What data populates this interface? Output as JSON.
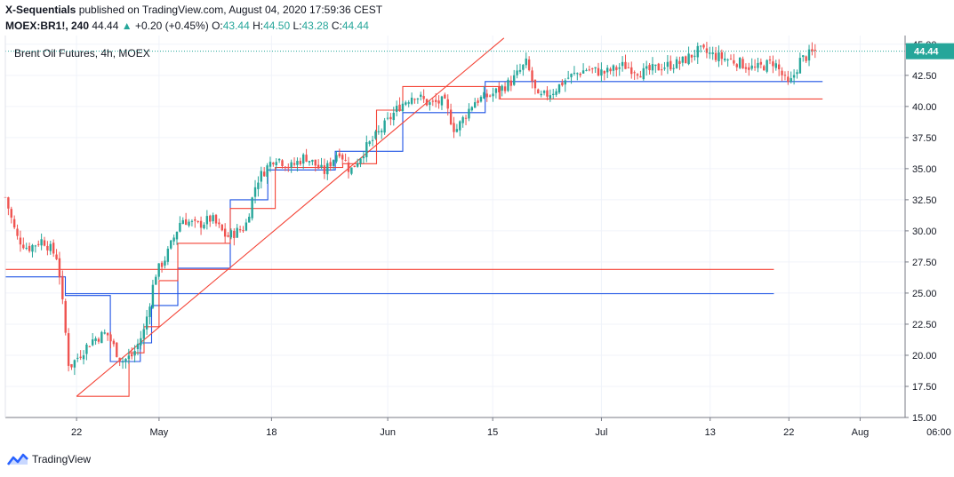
{
  "header": {
    "author": "X-Sequentials",
    "published": " published on TradingView.com, August 04, 2020 17:59:36 CEST",
    "symbol": "MOEX:BR1!, 240",
    "last": "44.44",
    "change_arrow": "▲",
    "change": "+0.20 (+0.45%)",
    "o_label": "O:",
    "o_value": "43.44",
    "h_label": "H:",
    "h_value": "44.50",
    "l_label": "L:",
    "l_value": "43.28",
    "c_label": "C:",
    "c_value": "44.44"
  },
  "footer": {
    "brand": "TradingView"
  },
  "colors": {
    "up": "#26a69a",
    "down": "#ef5350",
    "red_line": "#f44336",
    "blue_line": "#1e53e5",
    "grid": "#f0f3fa",
    "axis": "#787b86"
  },
  "chart_data": {
    "type": "candlestick",
    "title": "Brent Oil Futures, 4h, MOEX",
    "y_ticks": [
      "15.00",
      "17.50",
      "20.00",
      "22.50",
      "25.00",
      "27.50",
      "30.00",
      "32.50",
      "35.00",
      "37.50",
      "40.00",
      "42.50",
      "45.00"
    ],
    "ylim": [
      15,
      45.7
    ],
    "x_ticks": [
      "22",
      "May",
      "18",
      "Jun",
      "15",
      "Jul",
      "13",
      "22",
      "Aug",
      "06:00"
    ],
    "last_price_label": "44.44",
    "last_price": 44.44,
    "grid": true,
    "close_path": [
      [
        0,
        32.7
      ],
      [
        0.3,
        29.5
      ],
      [
        0.6,
        28.6
      ],
      [
        1.0,
        29.3
      ],
      [
        1.4,
        27.8
      ],
      [
        1.7,
        19.0
      ],
      [
        2.3,
        21.2
      ],
      [
        2.7,
        21.8
      ],
      [
        3.1,
        19.5
      ],
      [
        3.4,
        20.0
      ],
      [
        3.7,
        22.0
      ],
      [
        4.0,
        26.5
      ],
      [
        4.3,
        28.0
      ],
      [
        4.7,
        31.0
      ],
      [
        5.1,
        30.4
      ],
      [
        5.5,
        31.0
      ],
      [
        5.9,
        29.5
      ],
      [
        6.4,
        30.3
      ],
      [
        6.7,
        34.0
      ],
      [
        7.2,
        36.0
      ],
      [
        7.6,
        35.1
      ],
      [
        8.0,
        36.0
      ],
      [
        8.5,
        34.7
      ],
      [
        8.9,
        36.5
      ],
      [
        9.2,
        34.8
      ],
      [
        9.6,
        36.6
      ],
      [
        10.0,
        38.0
      ],
      [
        10.5,
        40.0
      ],
      [
        10.9,
        41.0
      ],
      [
        11.3,
        40.2
      ],
      [
        11.7,
        40.4
      ],
      [
        12.0,
        38.0
      ],
      [
        12.5,
        40.4
      ],
      [
        13.0,
        41.0
      ],
      [
        13.5,
        42.0
      ],
      [
        13.9,
        43.5
      ],
      [
        14.2,
        40.6
      ],
      [
        14.6,
        41.2
      ],
      [
        15.0,
        42.3
      ],
      [
        15.5,
        43.0
      ],
      [
        16.0,
        42.7
      ],
      [
        16.5,
        43.3
      ],
      [
        17.0,
        42.7
      ],
      [
        17.5,
        43.2
      ],
      [
        18.0,
        43.5
      ],
      [
        18.5,
        44.5
      ],
      [
        19.0,
        44.0
      ],
      [
        19.5,
        43.6
      ],
      [
        20.0,
        43.0
      ],
      [
        20.5,
        43.6
      ],
      [
        20.9,
        41.6
      ],
      [
        21.2,
        43.7
      ],
      [
        21.6,
        44.44
      ]
    ],
    "red_steps": [
      [
        1.9,
        16.7
      ],
      [
        3.3,
        16.7
      ],
      [
        3.3,
        20.2
      ],
      [
        3.7,
        20.2
      ],
      [
        3.7,
        22.3
      ],
      [
        4.1,
        22.3
      ],
      [
        4.1,
        26.0
      ],
      [
        4.6,
        26.0
      ],
      [
        4.6,
        29.0
      ],
      [
        6.0,
        29.0
      ],
      [
        6.0,
        31.8
      ],
      [
        7.2,
        31.8
      ],
      [
        7.2,
        35.1
      ],
      [
        9.0,
        35.1
      ],
      [
        9.0,
        35.4
      ],
      [
        9.9,
        35.4
      ],
      [
        9.9,
        39.7
      ],
      [
        10.6,
        39.7
      ],
      [
        10.6,
        41.6
      ],
      [
        13.2,
        41.6
      ],
      [
        13.2,
        40.6
      ],
      [
        21.8,
        40.6
      ]
    ],
    "blue_steps": [
      [
        0,
        26.3
      ],
      [
        1.6,
        26.3
      ],
      [
        1.6,
        24.8
      ],
      [
        2.8,
        24.8
      ],
      [
        2.8,
        19.5
      ],
      [
        3.6,
        19.5
      ],
      [
        3.6,
        21.0
      ],
      [
        3.9,
        21.0
      ],
      [
        3.9,
        24.0
      ],
      [
        4.6,
        24.0
      ],
      [
        4.6,
        27.0
      ],
      [
        6.0,
        27.0
      ],
      [
        6.0,
        32.5
      ],
      [
        7.0,
        32.5
      ],
      [
        7.0,
        34.9
      ],
      [
        8.8,
        34.9
      ],
      [
        8.8,
        36.4
      ],
      [
        10.6,
        36.4
      ],
      [
        10.6,
        39.5
      ],
      [
        12.8,
        39.5
      ],
      [
        12.8,
        42.0
      ],
      [
        21.8,
        42.0
      ]
    ],
    "trendline": [
      [
        1.9,
        16.7
      ],
      [
        13.3,
        45.5
      ]
    ],
    "horizontal_lines": [
      {
        "color": "red",
        "y": 26.9,
        "x_from": 0,
        "x_to": 20.5
      },
      {
        "color": "blue",
        "y": 24.95,
        "x_from": 1.6,
        "x_to": 20.5
      }
    ]
  }
}
